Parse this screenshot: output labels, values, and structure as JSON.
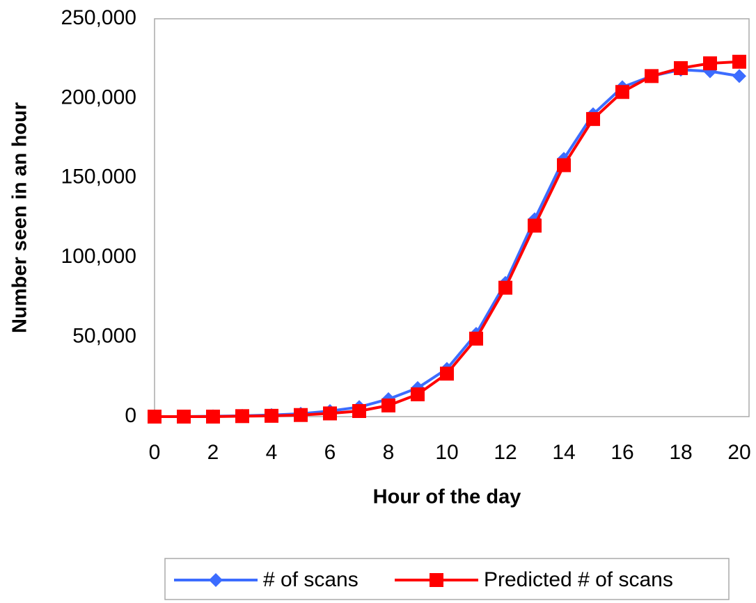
{
  "chart_data": {
    "type": "line",
    "x_label": "Hour of the day",
    "y_label": "Number seen in an hour",
    "x": [
      0,
      1,
      2,
      3,
      4,
      5,
      6,
      7,
      8,
      9,
      10,
      11,
      12,
      13,
      14,
      15,
      16,
      17,
      18,
      19,
      20
    ],
    "xlim": [
      0,
      20
    ],
    "xticks": [
      0,
      2,
      4,
      6,
      8,
      10,
      12,
      14,
      16,
      18,
      20
    ],
    "ylim": [
      0,
      250000
    ],
    "yticks": [
      0,
      {
        "value": 50000,
        "label": "50,000"
      },
      {
        "value": 100000,
        "label": "100,000"
      },
      {
        "value": 150000,
        "label": "150,000"
      },
      {
        "value": 200000,
        "label": "200,000"
      },
      {
        "value": 250000,
        "label": "250,000"
      }
    ],
    "grid": false,
    "legend": "bottom",
    "series": [
      {
        "name": "# of scans",
        "color": "#3c6cff",
        "marker": "diamond",
        "values": [
          0,
          0,
          200,
          500,
          1000,
          1800,
          3500,
          6000,
          11000,
          18000,
          30000,
          52000,
          84000,
          124000,
          162000,
          190000,
          207000,
          214000,
          218000,
          217000,
          214000
        ]
      },
      {
        "name": "Predicted # of scans",
        "color": "#ff0000",
        "marker": "square",
        "values": [
          0,
          0,
          0,
          300,
          500,
          1000,
          2000,
          3500,
          7000,
          14000,
          27000,
          49000,
          81000,
          120000,
          158000,
          187000,
          204000,
          214000,
          219000,
          222000,
          223000
        ]
      }
    ]
  }
}
